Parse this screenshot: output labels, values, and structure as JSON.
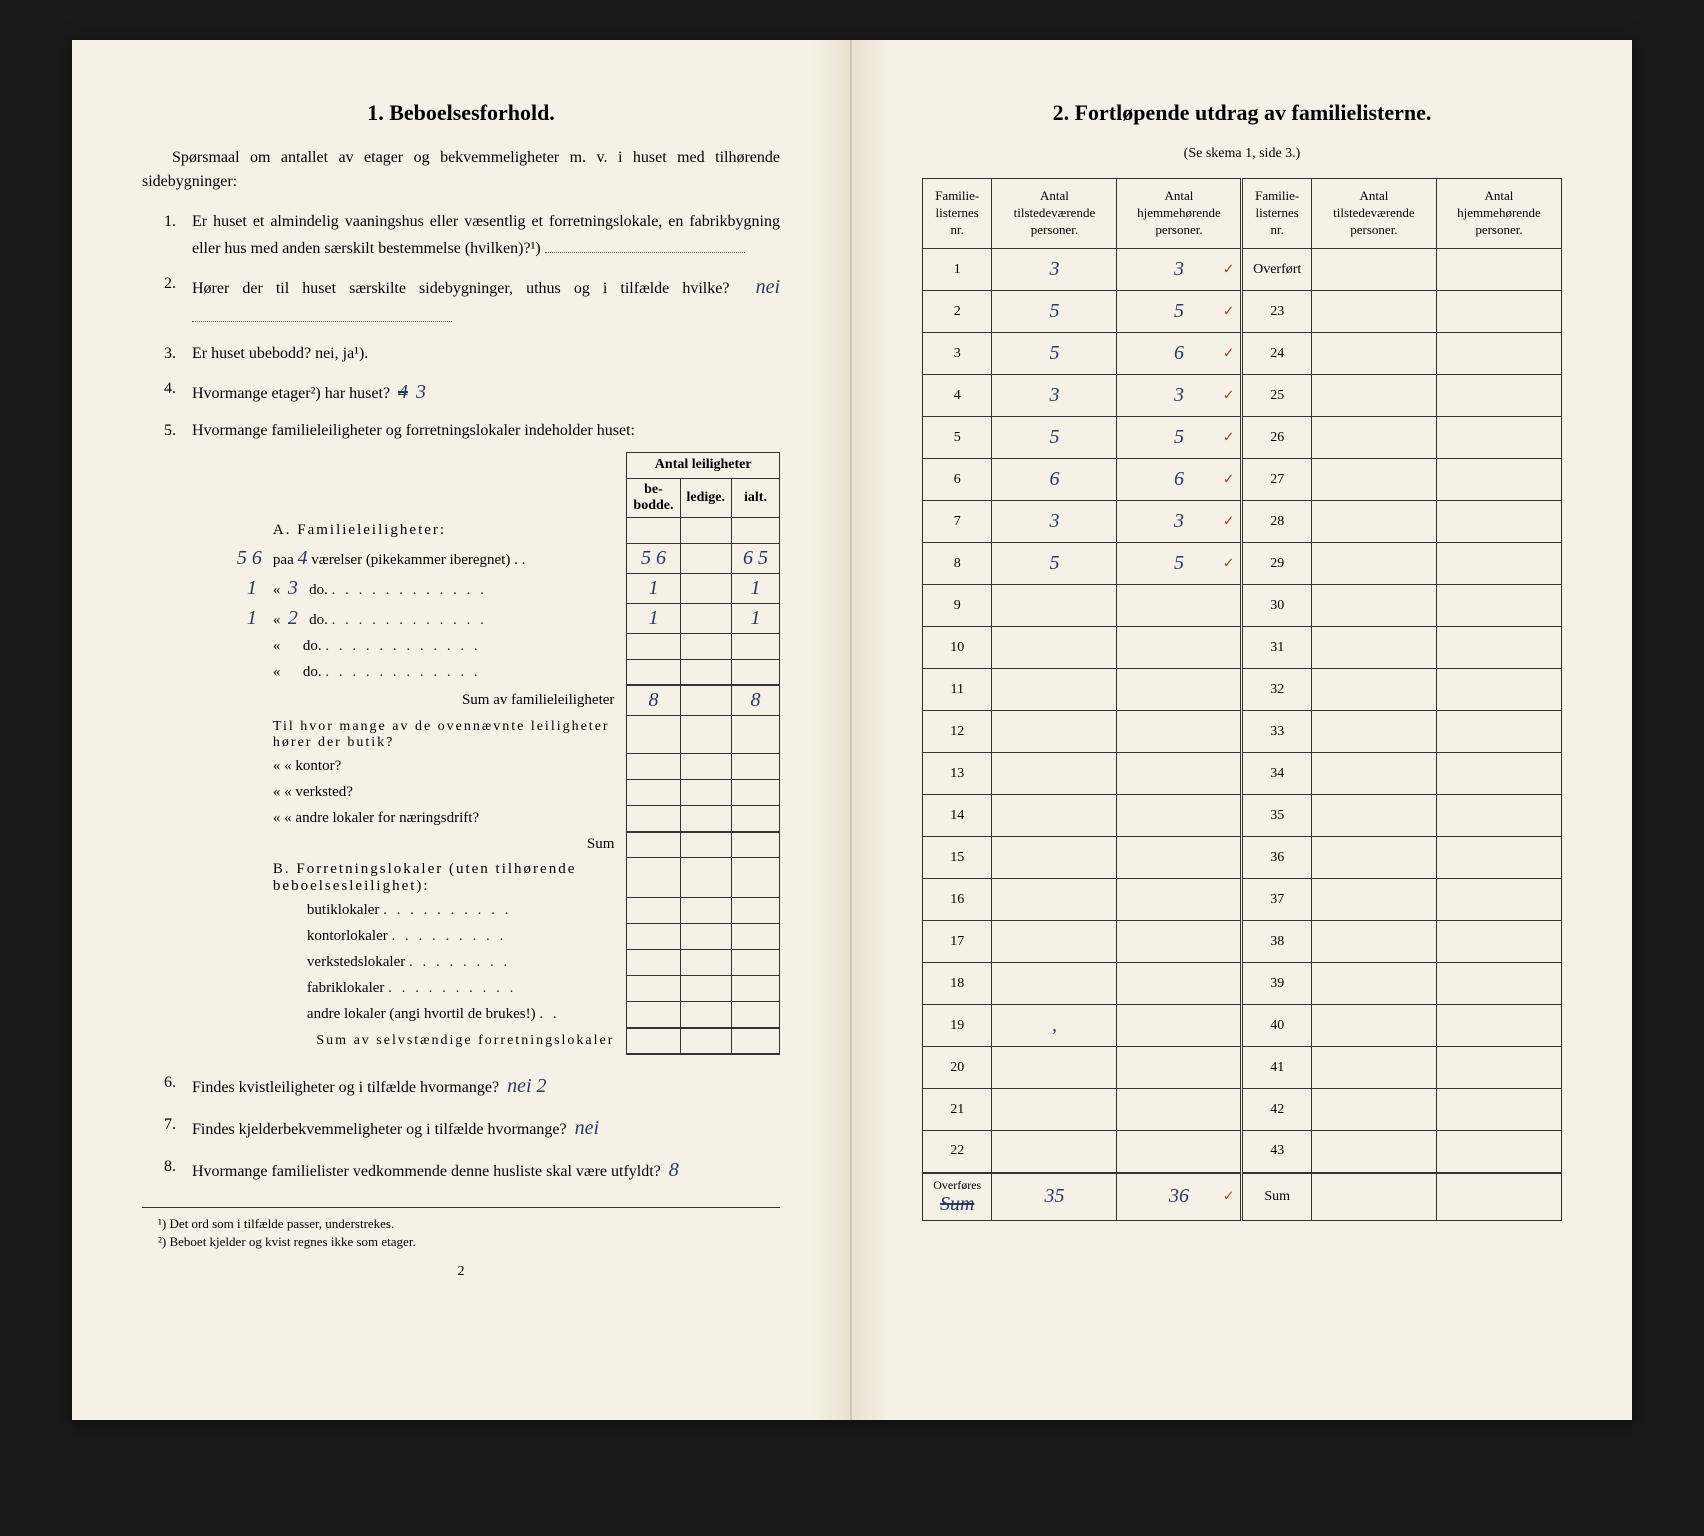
{
  "left": {
    "title": "1.   Beboelsesforhold.",
    "intro": "Spørsmaal om antallet av etager og bekvemmeligheter m. v. i huset med tilhørende sidebygninger:",
    "q1": "Er huset et almindelig vaaningshus eller væsentlig et forretningslokale, en fabrikbygning eller hus med anden særskilt bestemmelse (hvilken)?¹)",
    "q2": "Hører der til huset særskilte sidebygninger, uthus og i tilfælde hvilke?",
    "q2_answer": "nei",
    "q3": "Er huset ubebodd?  nei,  ja¹).",
    "q4": "Hvormange etager²) har huset?",
    "q4_strike": "4",
    "q4_answer": "3",
    "q5": "Hvormange familieleiligheter og forretningslokaler indeholder huset:",
    "lei_header_group": "Antal leiligheter",
    "lei_headers": [
      "be-\nbodde.",
      "ledige.",
      "ialt."
    ],
    "sectionA": "A. Familieleiligheter:",
    "rowA_margin": "5 6",
    "rowA1_label": "paa",
    "rowA1_num": "4",
    "rowA1_text": "værelser (pikekammer iberegnet) . .",
    "rowA1_v1": "5 6",
    "rowA1_v3": "6 5",
    "rowA2_margin": "1",
    "rowA2_num": "3",
    "rowA2_label": "«         do.",
    "rowA2_v1": "1",
    "rowA2_v3": "1",
    "rowA3_margin": "1",
    "rowA3_num": "2",
    "rowA3_label": "«         do.",
    "rowA3_v1": "1",
    "rowA3_v3": "1",
    "rowA4_label": "«           do.",
    "rowA5_label": "«           do.",
    "sumA_label": "Sum av familieleiligheter",
    "sumA_v1": "8",
    "sumA_v3": "8",
    "butik_label": "Til hvor mange av de ovennævnte leiligheter hører der butik?",
    "kontor_label": "«     «   kontor?",
    "verksted_label": "«     «   verksted?",
    "andre_label": "«     «   andre lokaler for næringsdrift?",
    "sum_mid": "Sum",
    "sectionB": "B. Forretningslokaler (uten tilhørende beboelsesleilighet):",
    "b_rows": [
      "butiklokaler",
      "kontorlokaler",
      "verkstedslokaler",
      "fabriklokaler",
      "andre lokaler (angi hvortil de brukes!)"
    ],
    "sumB_label": "Sum av selvstændige forretningslokaler",
    "q6": "Findes kvistleiligheter og i tilfælde hvormange?",
    "q6_answer": "nei 2",
    "q7": "Findes kjelderbekvemmeligheter og i tilfælde hvormange?",
    "q7_answer": "nei",
    "q8": "Hvormange familielister vedkommende denne husliste skal være utfyldt?",
    "q8_answer": "8",
    "footnote1": "¹) Det ord som i tilfælde passer, understrekes.",
    "footnote2": "²) Beboet kjelder og kvist regnes ikke som etager.",
    "page_num": "2"
  },
  "right": {
    "title": "2.   Fortløpende utdrag av familielisterne.",
    "subtitle": "(Se skema 1, side 3.)",
    "headers": [
      "Familie-\nlisternes\nnr.",
      "Antal\ntilstedeværende\npersoner.",
      "Antal\nhjemmehørende\npersoner.",
      "Familie-\nlisternes\nnr.",
      "Antal\ntilstedeværende\npersoner.",
      "Antal\nhjemmehørende\npersoner."
    ],
    "rows": [
      {
        "n1": "1",
        "v1": "3",
        "v2": "3",
        "tick": "✓",
        "n2": "Overført"
      },
      {
        "n1": "2",
        "v1": "5",
        "v2": "5",
        "tick": "✓",
        "n2": "23"
      },
      {
        "n1": "3",
        "v1": "5",
        "v2": "6",
        "tick": "✓",
        "n2": "24"
      },
      {
        "n1": "4",
        "v1": "3",
        "v2": "3",
        "tick": "✓",
        "n2": "25"
      },
      {
        "n1": "5",
        "v1": "5",
        "v2": "5",
        "tick": "✓",
        "n2": "26"
      },
      {
        "n1": "6",
        "v1": "6",
        "v2": "6",
        "tick": "✓",
        "n2": "27"
      },
      {
        "n1": "7",
        "v1": "3",
        "v2": "3",
        "tick": "✓",
        "n2": "28"
      },
      {
        "n1": "8",
        "v1": "5",
        "v2": "5",
        "tick": "✓",
        "n2": "29"
      },
      {
        "n1": "9",
        "v1": "",
        "v2": "",
        "tick": "",
        "n2": "30"
      },
      {
        "n1": "10",
        "v1": "",
        "v2": "",
        "tick": "",
        "n2": "31"
      },
      {
        "n1": "11",
        "v1": "",
        "v2": "",
        "tick": "",
        "n2": "32"
      },
      {
        "n1": "12",
        "v1": "",
        "v2": "",
        "tick": "",
        "n2": "33"
      },
      {
        "n1": "13",
        "v1": "",
        "v2": "",
        "tick": "",
        "n2": "34"
      },
      {
        "n1": "14",
        "v1": "",
        "v2": "",
        "tick": "",
        "n2": "35"
      },
      {
        "n1": "15",
        "v1": "",
        "v2": "",
        "tick": "",
        "n2": "36"
      },
      {
        "n1": "16",
        "v1": "",
        "v2": "",
        "tick": "",
        "n2": "37"
      },
      {
        "n1": "17",
        "v1": "",
        "v2": "",
        "tick": "",
        "n2": "38"
      },
      {
        "n1": "18",
        "v1": "",
        "v2": "",
        "tick": "",
        "n2": "39"
      },
      {
        "n1": "19",
        "v1": ",",
        "v2": "",
        "tick": "",
        "n2": "40"
      },
      {
        "n1": "20",
        "v1": "",
        "v2": "",
        "tick": "",
        "n2": "41"
      },
      {
        "n1": "21",
        "v1": "",
        "v2": "",
        "tick": "",
        "n2": "42"
      },
      {
        "n1": "22",
        "v1": "",
        "v2": "",
        "tick": "",
        "n2": "43"
      }
    ],
    "footer": {
      "label1": "Overføres",
      "strike": "Sum",
      "v1": "35",
      "v2": "36",
      "tick": "✓",
      "label2": "Sum"
    }
  },
  "colors": {
    "paper": "#f5f1e6",
    "ink": "#1a1a1a",
    "hand_blue": "#2a3a5a",
    "hand_red": "#c04030",
    "border": "#333333"
  }
}
